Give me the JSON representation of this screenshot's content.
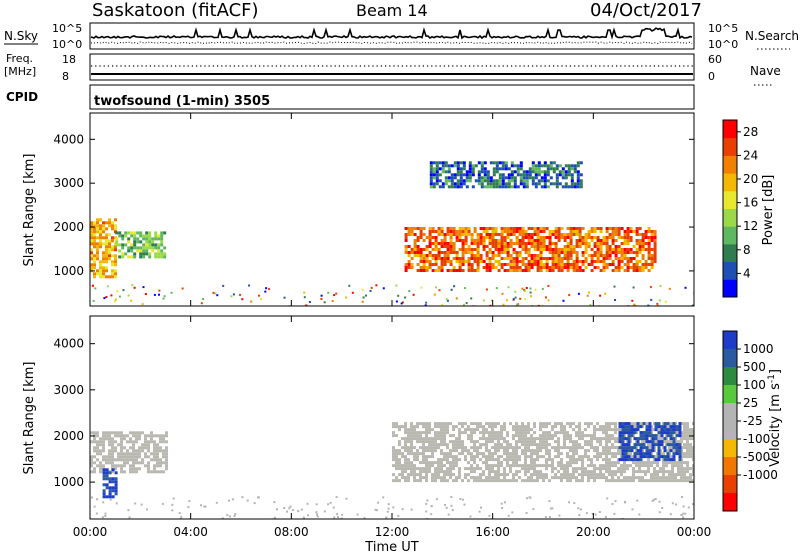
{
  "header": {
    "station": "Saskatoon (fitACF)",
    "beam": "Beam 14",
    "date": "04/Oct/2017"
  },
  "noise_panel": {
    "left_label": "N.Sky",
    "right_label": "N.Search",
    "left_ticks": [
      "10^5",
      "10^0"
    ],
    "right_ticks": [
      "10^5",
      "10^0"
    ]
  },
  "freq_panel": {
    "left_label_line1": "Freq.",
    "left_label_line2": "[MHz]",
    "right_label": "Nave",
    "left_ticks": [
      "18",
      "8"
    ],
    "right_ticks": [
      "60",
      "0"
    ]
  },
  "cpid": {
    "label": "CPID",
    "program": "twofsound (1-min) 3505"
  },
  "x_axis": {
    "title": "Time UT",
    "ticks": [
      "00:00",
      "04:00",
      "08:00",
      "12:00",
      "16:00",
      "20:00",
      "00:00"
    ]
  },
  "colors": {
    "power_scale": [
      "#0000ff",
      "#1e4fb4",
      "#2f7d4f",
      "#5fb85f",
      "#9bd94a",
      "#e8e830",
      "#f5b800",
      "#f08000",
      "#e84000",
      "#ff0000"
    ],
    "velocity_scale": [
      "#1e3cc8",
      "#2a5aa0",
      "#2e8a3e",
      "#58c83c",
      "#b4b4b4",
      "#b4b4b4",
      "#f5b800",
      "#f07800",
      "#e84000",
      "#ff0000"
    ],
    "ground_scatter": "#b9b9b1"
  },
  "chart_data": [
    {
      "type": "heatmap",
      "title": "",
      "xlabel": "",
      "ylabel": "Slant Range [km]",
      "yticks": [
        "1000",
        "2000",
        "3000",
        "4000"
      ],
      "ylim": [
        200,
        4600
      ],
      "xlim": [
        "00:00",
        "24:00"
      ],
      "colorbar": {
        "label": "Power [dB]",
        "ticks": [
          "4",
          "8",
          "12",
          "16",
          "20",
          "24",
          "28"
        ],
        "range": [
          0,
          30
        ]
      },
      "regions": [
        {
          "t_start": "00:00",
          "t_end": "01:00",
          "range_start_km": 900,
          "range_end_km": 2200,
          "value": 20
        },
        {
          "t_start": "01:00",
          "t_end": "03:00",
          "range_start_km": 1300,
          "range_end_km": 1900,
          "value": 12
        },
        {
          "t_start": "12:30",
          "t_end": "22:30",
          "range_start_km": 1000,
          "range_end_km": 2000,
          "value": 24
        },
        {
          "t_start": "13:30",
          "t_end": "19:30",
          "range_start_km": 2900,
          "range_end_km": 3500,
          "value": 6
        }
      ]
    },
    {
      "type": "heatmap",
      "title": "",
      "xlabel": "Time UT",
      "ylabel": "Slant Range [km]",
      "yticks": [
        "1000",
        "2000",
        "3000",
        "4000"
      ],
      "ylim": [
        200,
        4600
      ],
      "xlim": [
        "00:00",
        "24:00"
      ],
      "colorbar": {
        "label": "Velocity [m s^-1]",
        "ticks": [
          "1000",
          "500",
          "100",
          "25",
          "-25",
          "-100",
          "-500",
          "-1000"
        ]
      },
      "regions": [
        {
          "t_start": "00:00",
          "t_end": "03:00",
          "range_start_km": 1200,
          "range_end_km": 2100,
          "value": "ground scatter"
        },
        {
          "t_start": "00:30",
          "t_end": "01:00",
          "range_start_km": 700,
          "range_end_km": 1300,
          "value": 500
        },
        {
          "t_start": "12:00",
          "t_end": "24:00",
          "range_start_km": 1000,
          "range_end_km": 2300,
          "value": "ground scatter"
        },
        {
          "t_start": "21:00",
          "t_end": "23:30",
          "range_start_km": 1500,
          "range_end_km": 2300,
          "value": 500
        }
      ]
    }
  ]
}
